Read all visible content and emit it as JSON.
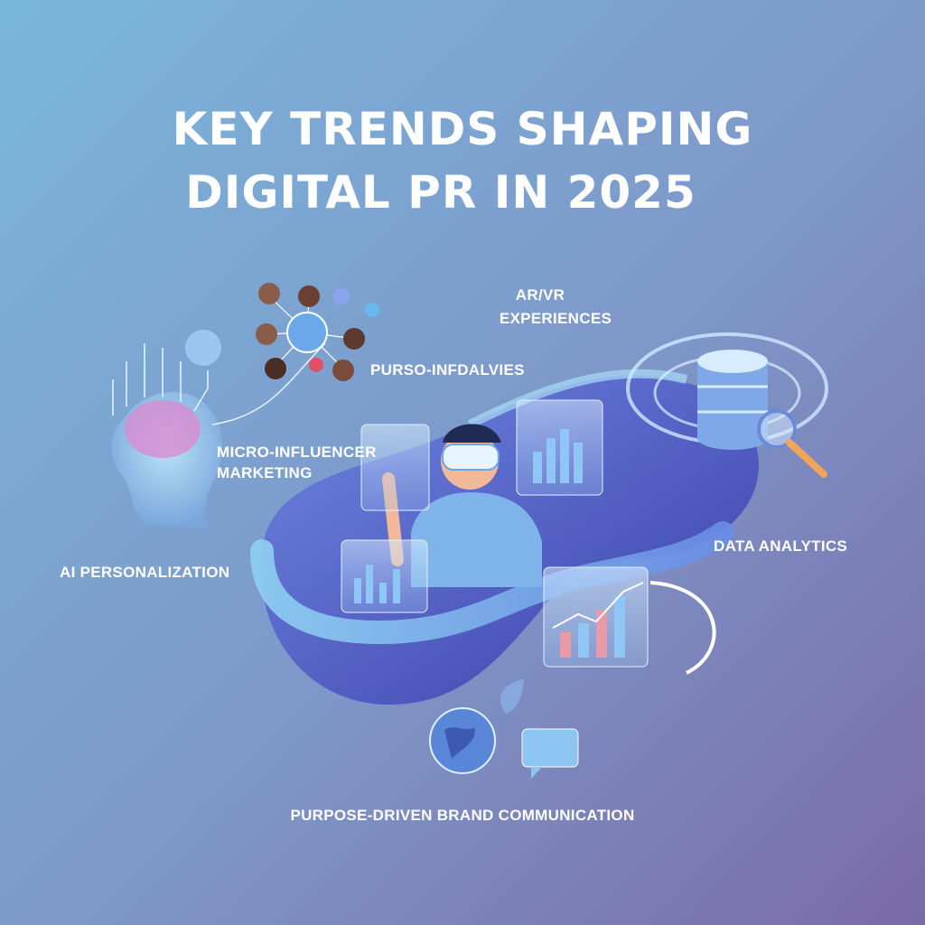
{
  "header": {
    "title_lines": [
      "KEY TRENDS SHAPING",
      "DIGITAL PR IN 2025"
    ]
  },
  "labels": [
    {
      "lines": [
        "AR/VR",
        "EXPERIENCES"
      ]
    },
    {
      "lines": [
        "PURSO-INFDALVIES"
      ]
    },
    {
      "lines": [
        "MICRO-INFLUENCER",
        "MARKETING"
      ]
    },
    {
      "lines": [
        "AI PERSONALIZATION"
      ]
    },
    {
      "lines": [
        "DATA ANALYTICS"
      ]
    },
    {
      "lines": [
        "PURPOSE-DRIVEN BRAND COMMUNICATION"
      ]
    }
  ]
}
